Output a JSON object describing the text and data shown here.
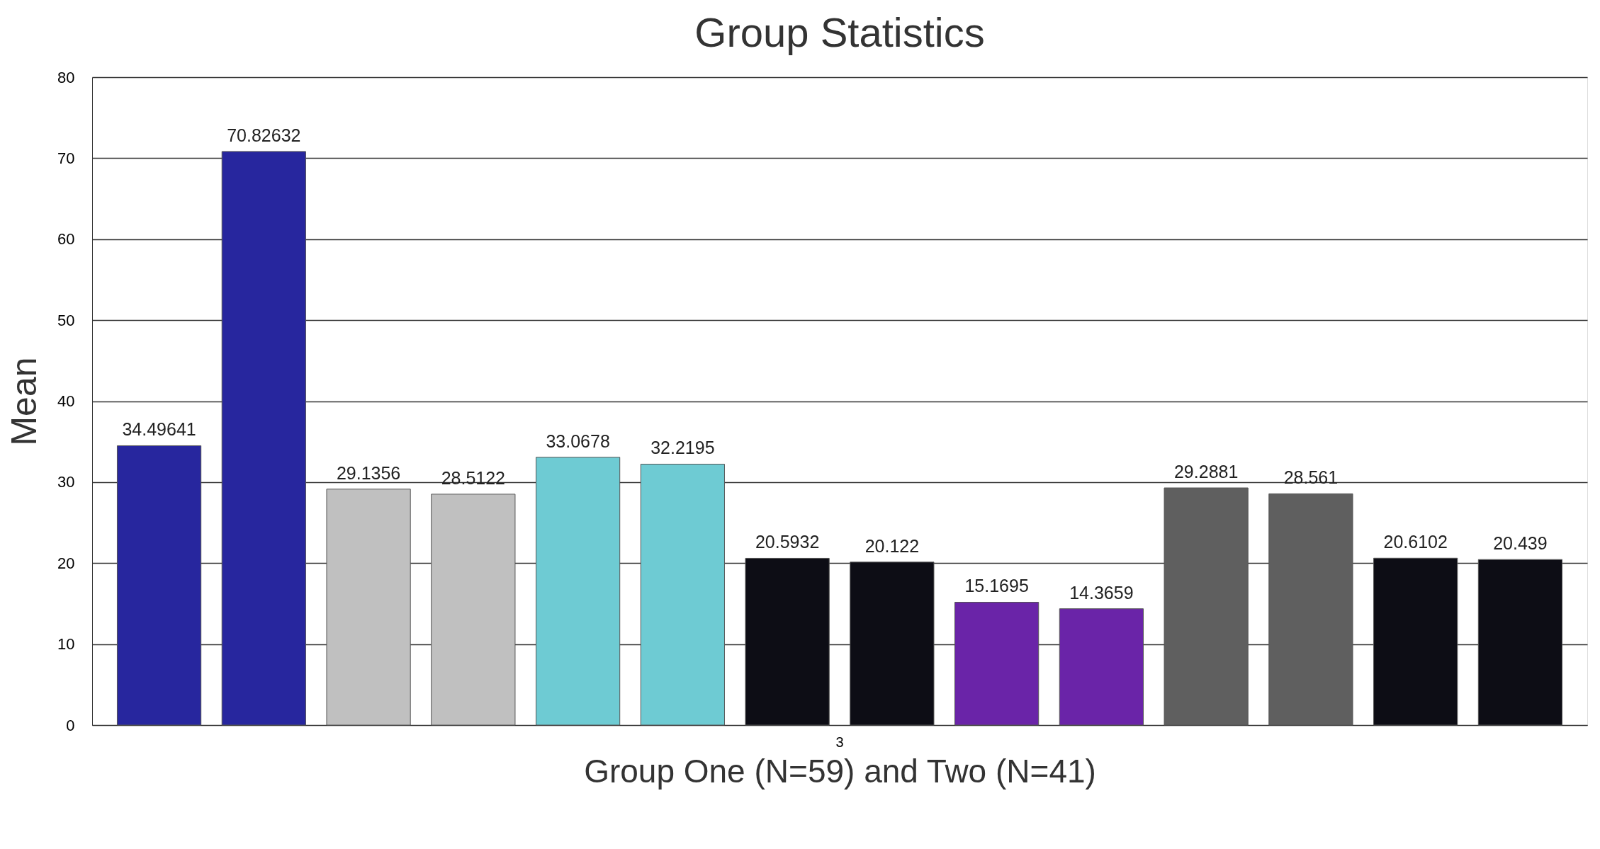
{
  "chart_data": {
    "type": "bar",
    "title": "Group Statistics",
    "xlabel": "Group One (N=59) and Two (N=41)",
    "ylabel": "Mean",
    "categories": [
      "3"
    ],
    "series": [
      {
        "color": "#27269e",
        "values": [
          34.49641
        ]
      },
      {
        "color": "#27269e",
        "values": [
          70.82632
        ]
      },
      {
        "color": "#c0c0c0",
        "values": [
          29.1356
        ]
      },
      {
        "color": "#c0c0c0",
        "values": [
          28.5122
        ]
      },
      {
        "color": "#6ecbd3",
        "values": [
          33.0678
        ]
      },
      {
        "color": "#6ecbd3",
        "values": [
          32.2195
        ]
      },
      {
        "color": "#0d0d15",
        "values": [
          20.5932
        ]
      },
      {
        "color": "#0d0d15",
        "values": [
          20.122
        ]
      },
      {
        "color": "#6a24a8",
        "values": [
          15.1695
        ]
      },
      {
        "color": "#6a24a8",
        "values": [
          14.3659
        ]
      },
      {
        "color": "#5f5f5f",
        "values": [
          29.2881
        ]
      },
      {
        "color": "#5f5f5f",
        "values": [
          28.561
        ]
      },
      {
        "color": "#0d0d15",
        "values": [
          20.6102
        ]
      },
      {
        "color": "#0d0d15",
        "values": [
          20.439
        ]
      }
    ],
    "ylim": [
      0,
      80
    ],
    "yticks": [
      0,
      10,
      20,
      30,
      40,
      50,
      60,
      70,
      80
    ],
    "grid": "y",
    "data_labels": true,
    "legend": false
  }
}
